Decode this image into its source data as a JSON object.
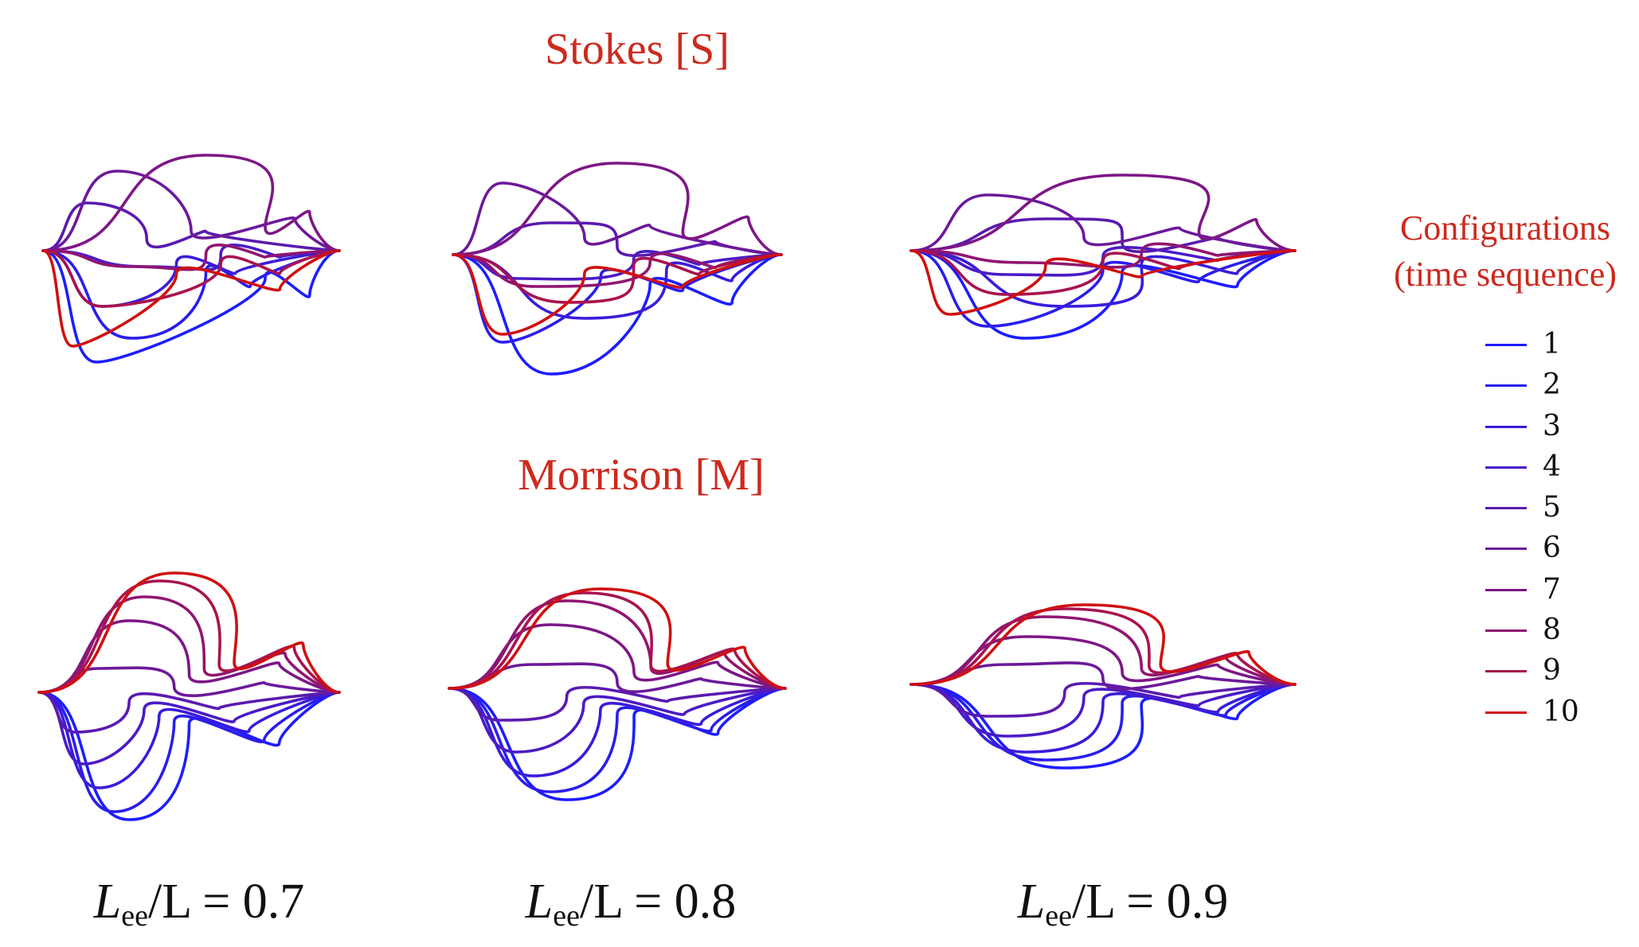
{
  "rows": [
    {
      "id": "stokes",
      "title": "Stokes [S]"
    },
    {
      "id": "morrison",
      "title": "Morrison [M]"
    }
  ],
  "columns": [
    {
      "symbol": "L",
      "subscript": "ee",
      "rest": "/L = 0.7"
    },
    {
      "symbol": "L",
      "subscript": "ee",
      "rest": "/L = 0.8"
    },
    {
      "symbol": "L",
      "subscript": "ee",
      "rest": "/L = 0.9"
    }
  ],
  "legend": {
    "title_line1": "Configurations",
    "title_line2": "(time sequence)",
    "items": [
      {
        "label": "1",
        "color": "#1d1dff"
      },
      {
        "label": "2",
        "color": "#2a1ded"
      },
      {
        "label": "3",
        "color": "#3a1cdb"
      },
      {
        "label": "4",
        "color": "#4a1bc6"
      },
      {
        "label": "5",
        "color": "#5b1ab0"
      },
      {
        "label": "6",
        "color": "#6c199b"
      },
      {
        "label": "7",
        "color": "#7d1786"
      },
      {
        "label": "8",
        "color": "#901570"
      },
      {
        "label": "9",
        "color": "#a8134f"
      },
      {
        "label": "10",
        "color": "#d01010"
      }
    ]
  },
  "colors": {
    "title_red": "#cc2a1e",
    "config_start": "#1d1dff",
    "config_end": "#d01010"
  }
}
